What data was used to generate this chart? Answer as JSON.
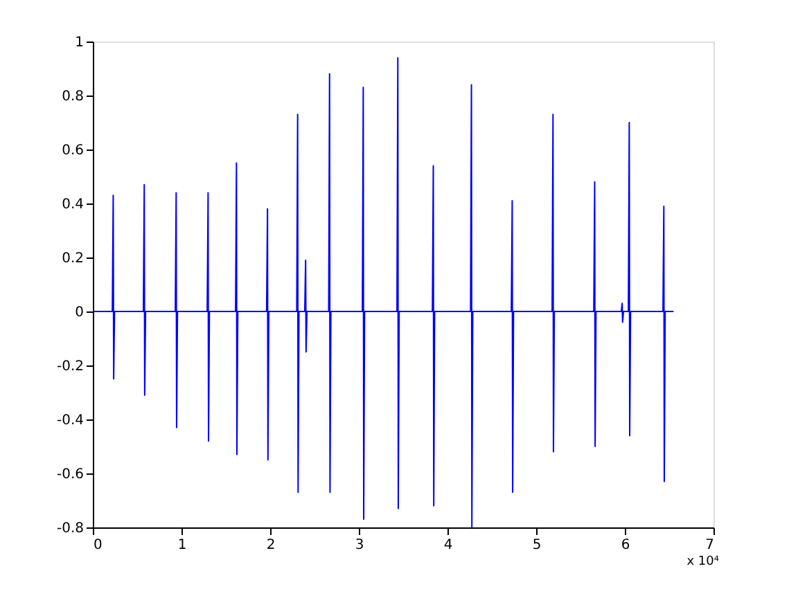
{
  "chart_data": {
    "type": "line",
    "x": [
      0,
      0.22,
      0.23,
      0.235,
      0.245,
      0.57,
      0.58,
      0.585,
      0.595,
      0.93,
      0.94,
      0.945,
      0.955,
      1.29,
      1.3,
      1.305,
      1.315,
      1.61,
      1.62,
      1.625,
      1.635,
      1.96,
      1.97,
      1.975,
      1.985,
      2.3,
      2.31,
      2.315,
      2.325,
      2.39,
      2.4,
      2.405,
      2.415,
      2.66,
      2.67,
      2.675,
      2.685,
      3.04,
      3.05,
      3.055,
      3.065,
      3.43,
      3.44,
      3.445,
      3.455,
      3.83,
      3.84,
      3.845,
      3.855,
      4.26,
      4.27,
      4.275,
      4.285,
      4.72,
      4.73,
      4.735,
      4.745,
      5.18,
      5.19,
      5.195,
      5.205,
      5.65,
      5.66,
      5.665,
      5.675,
      5.96,
      5.97,
      5.975,
      5.985,
      6.04,
      6.05,
      6.055,
      6.065,
      6.43,
      6.44,
      6.445,
      6.455,
      6.55
    ],
    "series": [
      {
        "color": "#0000ff",
        "values": [
          0,
          0,
          0.43,
          -0.25,
          0,
          0,
          0.47,
          -0.31,
          0,
          0,
          0.44,
          -0.43,
          0,
          0,
          0.44,
          -0.48,
          0,
          0,
          0.55,
          -0.53,
          0,
          0,
          0.38,
          -0.55,
          0,
          0,
          0.73,
          -0.67,
          0,
          0,
          0.19,
          -0.15,
          0,
          0,
          0.88,
          -0.67,
          0,
          0,
          0.83,
          -0.77,
          0,
          0,
          0.94,
          -0.73,
          0,
          0,
          0.54,
          -0.72,
          0,
          0,
          0.84,
          -0.8,
          0,
          0,
          0.41,
          -0.67,
          0,
          0,
          0.73,
          -0.52,
          0,
          0,
          0.48,
          -0.5,
          0,
          0,
          0.03,
          -0.04,
          0,
          0,
          0.7,
          -0.46,
          0,
          0,
          0.39,
          -0.63,
          0,
          0
        ]
      }
    ],
    "xlim": [
      0,
      7
    ],
    "xticks": [
      0,
      1,
      2,
      3,
      4,
      5,
      6,
      7
    ],
    "ylim": [
      -0.8,
      1
    ],
    "yticks": [
      -0.8,
      -0.6,
      -0.4,
      -0.2,
      0,
      0.2,
      0.4,
      0.6,
      0.8,
      1
    ],
    "annotations": [
      "x 10⁴"
    ],
    "grid": false,
    "line_style": "solid",
    "marker": "none"
  }
}
